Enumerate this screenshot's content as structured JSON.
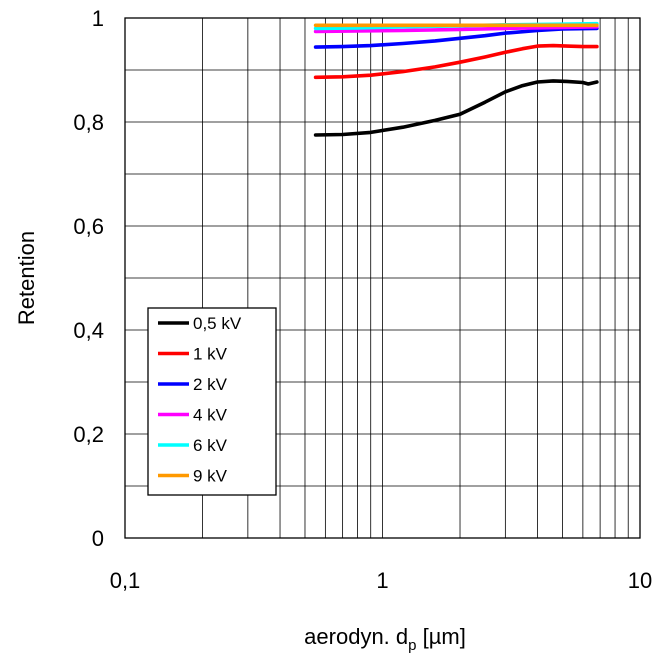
{
  "chart_data": {
    "type": "line",
    "xlabel": "aerodyn. d",
    "xlabel_sub": "p",
    "xlabel_unit": " [µm]",
    "ylabel": "Retention",
    "x_scale": "log",
    "xlim": [
      0.1,
      10
    ],
    "ylim": [
      0,
      1
    ],
    "grid": true,
    "legend_position": "bottom-left",
    "x_ticks": [
      {
        "value": 0.1,
        "label": "0,1"
      },
      {
        "value": 1,
        "label": "1"
      },
      {
        "value": 10,
        "label": "10"
      }
    ],
    "y_ticks": [
      {
        "value": 0,
        "label": "0"
      },
      {
        "value": 0.2,
        "label": "0,2"
      },
      {
        "value": 0.4,
        "label": "0,4"
      },
      {
        "value": 0.6,
        "label": "0,6"
      },
      {
        "value": 0.8,
        "label": "0,8"
      },
      {
        "value": 1,
        "label": "1"
      }
    ],
    "series": [
      {
        "name": "0,5 kV",
        "color": "#000000",
        "x": [
          0.55,
          0.7,
          0.9,
          1.2,
          1.6,
          2.0,
          2.5,
          3.0,
          3.5,
          4.0,
          4.6,
          5.2,
          6.0,
          6.3,
          6.8
        ],
        "y": [
          0.775,
          0.776,
          0.78,
          0.79,
          0.803,
          0.815,
          0.838,
          0.858,
          0.87,
          0.877,
          0.879,
          0.878,
          0.876,
          0.873,
          0.877
        ]
      },
      {
        "name": "1 kV",
        "color": "#ff0000",
        "x": [
          0.55,
          0.7,
          0.9,
          1.2,
          1.6,
          2.0,
          2.5,
          3.0,
          3.5,
          4.0,
          4.6,
          5.2,
          6.0,
          6.8
        ],
        "y": [
          0.886,
          0.887,
          0.89,
          0.897,
          0.906,
          0.915,
          0.925,
          0.934,
          0.941,
          0.946,
          0.947,
          0.946,
          0.945,
          0.945
        ]
      },
      {
        "name": "2 kV",
        "color": "#0000ff",
        "x": [
          0.55,
          0.7,
          0.9,
          1.2,
          1.6,
          2.0,
          2.5,
          3.0,
          4.0,
          5.0,
          6.8
        ],
        "y": [
          0.944,
          0.945,
          0.947,
          0.951,
          0.956,
          0.961,
          0.966,
          0.971,
          0.976,
          0.979,
          0.98
        ]
      },
      {
        "name": "4 kV",
        "color": "#ff00ff",
        "x": [
          0.55,
          0.8,
          1.2,
          2.0,
          3.0,
          5.0,
          6.8
        ],
        "y": [
          0.974,
          0.975,
          0.976,
          0.978,
          0.98,
          0.982,
          0.983
        ]
      },
      {
        "name": "6 kV",
        "color": "#00ffff",
        "x": [
          0.55,
          0.8,
          1.2,
          2.0,
          3.0,
          5.0,
          6.8
        ],
        "y": [
          0.98,
          0.981,
          0.983,
          0.985,
          0.987,
          0.988,
          0.989
        ]
      },
      {
        "name": "9 kV",
        "color": "#ff9900",
        "x": [
          0.55,
          0.8,
          1.2,
          2.0,
          3.0,
          5.0,
          6.8
        ],
        "y": [
          0.986,
          0.986,
          0.986,
          0.986,
          0.986,
          0.986,
          0.986
        ]
      }
    ]
  }
}
